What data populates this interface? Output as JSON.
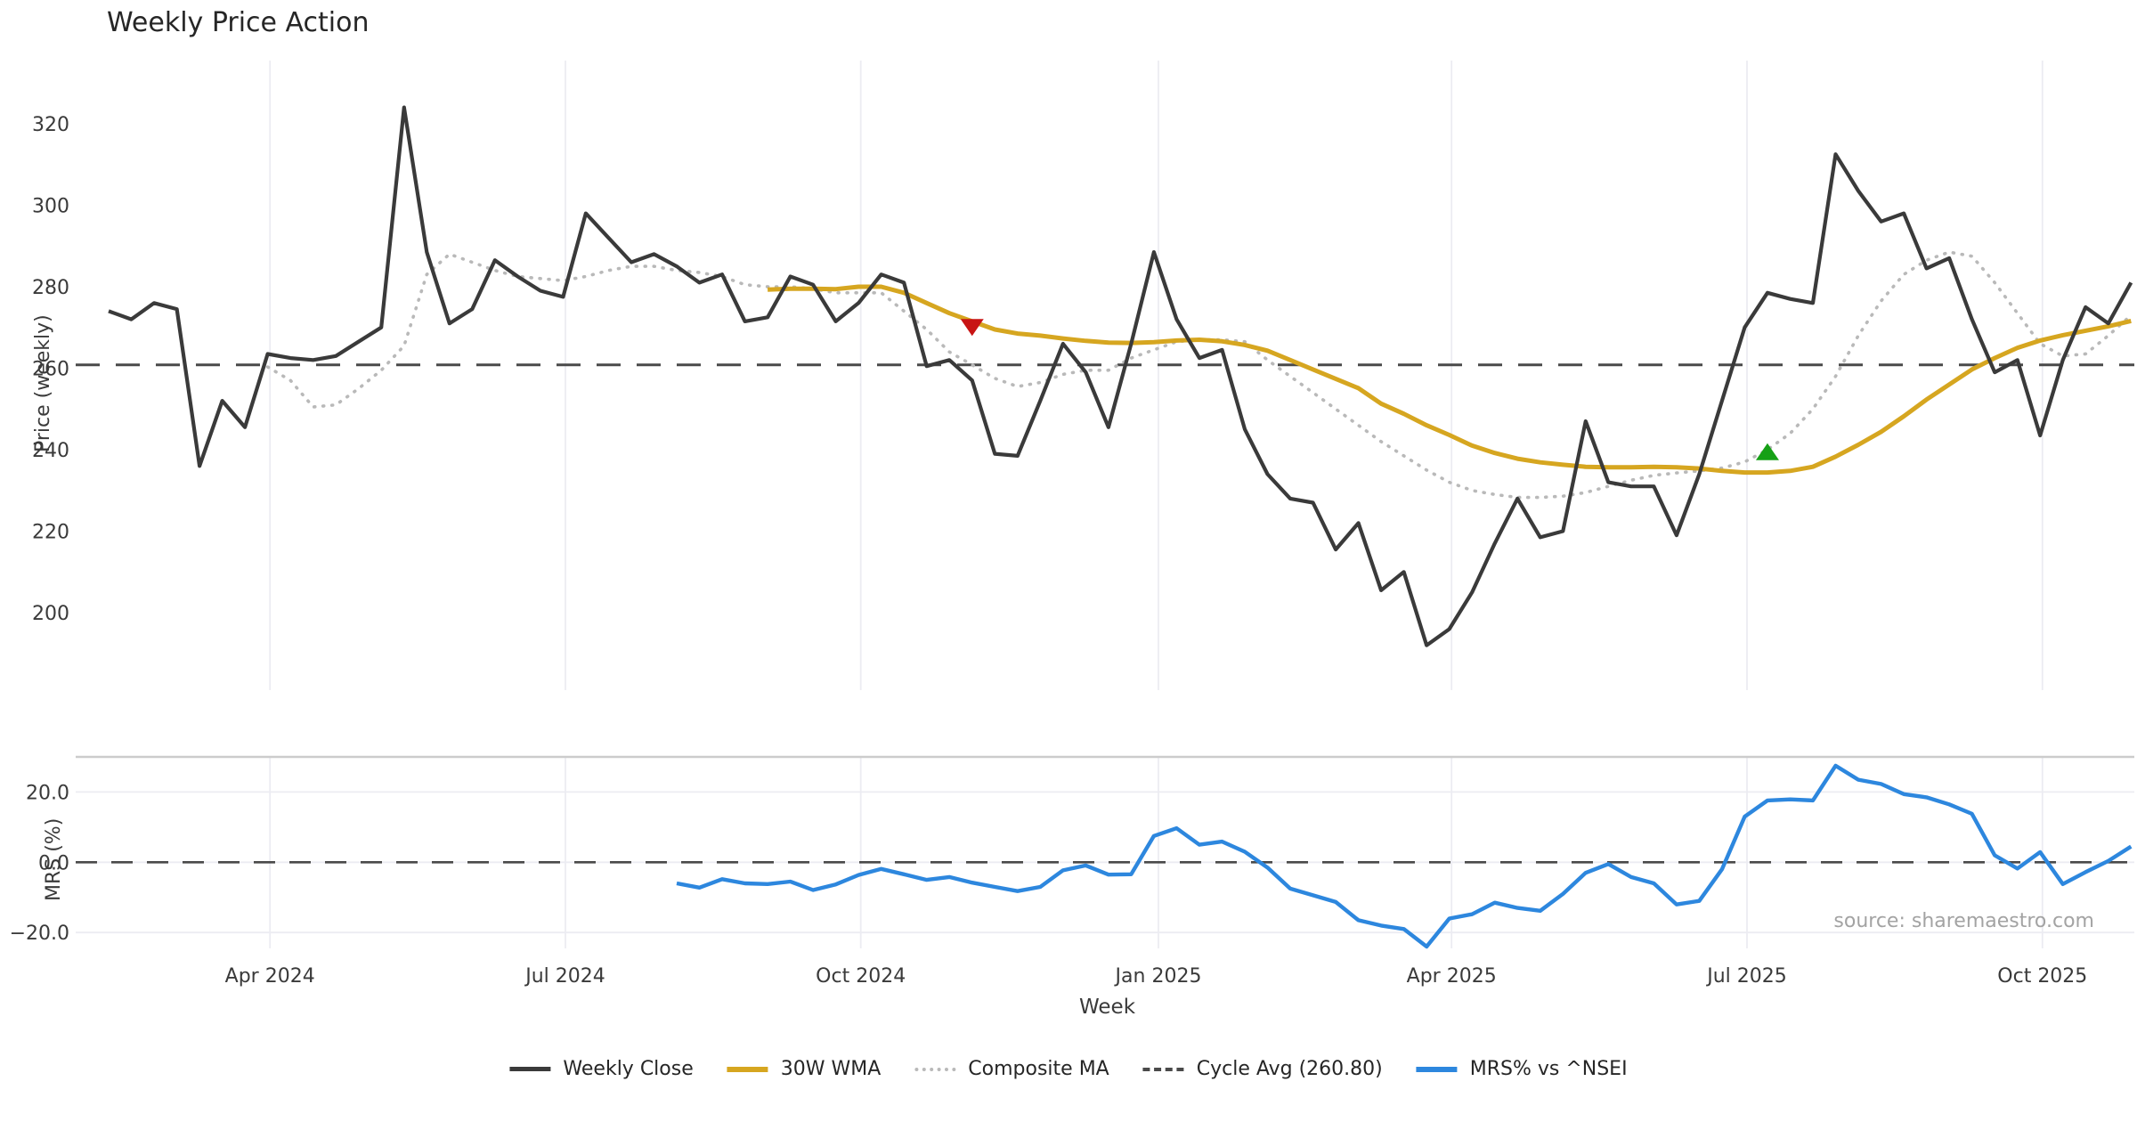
{
  "title": "Weekly Price Action",
  "source_note": "source: sharemaestro.com",
  "axes": {
    "price_axis_label": "Price (weekly)",
    "mrs_axis_label": "MRS (%)",
    "x_axis_label": "Week"
  },
  "legend": [
    {
      "label": "Weekly Close",
      "swatch": "solid-dark"
    },
    {
      "label": "30W WMA",
      "swatch": "solid-gold"
    },
    {
      "label": "Composite MA",
      "swatch": "dotted-gray"
    },
    {
      "label": "Cycle Avg (260.80)",
      "swatch": "dashed-dark"
    },
    {
      "label": "MRS% vs ^NSEI",
      "swatch": "solid-blue"
    }
  ],
  "colors": {
    "weekly_close": "#3a3a3a",
    "wma_30w": "#d6a620",
    "composite_ma": "#b9b9b9",
    "cycle_avg": "#4a4a4a",
    "mrs_line": "#2d87de",
    "sell_marker": "#c81414",
    "buy_marker": "#16a016",
    "gridline": "#ececf2",
    "panel_spine": "#cccccc",
    "tick_text": "#3a3a3a"
  },
  "chart_data": {
    "type": "line",
    "title": "Weekly Price Action",
    "x_unit": "weekly bars starting mid-Feb 2024",
    "cycle_avg_value": 260.8,
    "x_ticks": [
      {
        "label": "Apr 2024",
        "week_index": 7.1
      },
      {
        "label": "Jul 2024",
        "week_index": 20.1
      },
      {
        "label": "Oct 2024",
        "week_index": 33.1
      },
      {
        "label": "Jan 2025",
        "week_index": 46.2
      },
      {
        "label": "Apr 2025",
        "week_index": 59.1
      },
      {
        "label": "Jul 2025",
        "week_index": 72.1
      },
      {
        "label": "Oct 2025",
        "week_index": 85.1
      }
    ],
    "panels": [
      {
        "name": "price",
        "ylabel": "Price (weekly)",
        "y_ticks": [
          {
            "label": "320",
            "v": 320
          },
          {
            "label": "300",
            "v": 300
          },
          {
            "label": "280",
            "v": 280
          },
          {
            "label": "260",
            "v": 260
          },
          {
            "label": "240",
            "v": 240
          },
          {
            "label": "220",
            "v": 220
          },
          {
            "label": "200",
            "v": 200
          }
        ],
        "ylim": [
          181,
          335.5
        ],
        "grid": "vertical-only",
        "reference_line": {
          "name": "Cycle Avg",
          "value": 260.8,
          "style": "dashed"
        }
      },
      {
        "name": "mrs",
        "ylabel": "MRS (%)",
        "y_ticks": [
          {
            "label": "20.0",
            "v": 20
          },
          {
            "label": "0.0",
            "v": 0
          },
          {
            "label": "−20.0",
            "v": -20
          }
        ],
        "ylim": [
          -24.5,
          30
        ],
        "grid": "horizontal-and-vertical",
        "reference_line": {
          "name": "zero",
          "value": 0,
          "style": "dashed"
        }
      }
    ],
    "series": [
      {
        "name": "Weekly Close",
        "panel": "price",
        "start_index": 0,
        "values": [
          274,
          272,
          276,
          274.5,
          236,
          252,
          245.5,
          263.5,
          262.5,
          262,
          263,
          266.5,
          270,
          324,
          288.5,
          271,
          274.5,
          286.5,
          282.5,
          279,
          277.5,
          298,
          292,
          286,
          288,
          285,
          281,
          283,
          271.5,
          272.5,
          282.5,
          280.5,
          271.5,
          276,
          283,
          281,
          260.5,
          262,
          257,
          239,
          238.5,
          252,
          266,
          259,
          245.5,
          266,
          288.5,
          272,
          262.5,
          264.5,
          245,
          234,
          228,
          227,
          215.5,
          222,
          205.5,
          210,
          192,
          196,
          205,
          217,
          228,
          218.5,
          220,
          247,
          232,
          231,
          231,
          219,
          234,
          252,
          270,
          278.5,
          277,
          276,
          312.5,
          303.5,
          296,
          298,
          284.5,
          287,
          272,
          259,
          262,
          243.5,
          262,
          275,
          271,
          281
        ]
      },
      {
        "name": "30W WMA",
        "panel": "price",
        "start_index": 29,
        "values": [
          279.3,
          279.5,
          279.5,
          279.4,
          280,
          280,
          278.5,
          276,
          273.5,
          271.5,
          269.5,
          268.5,
          268,
          267.3,
          266.7,
          266.3,
          266.2,
          266.4,
          266.8,
          267,
          266.6,
          265.7,
          264.3,
          262,
          259.7,
          257.4,
          255.1,
          251.3,
          248.8,
          246,
          243.6,
          241,
          239.2,
          237.8,
          236.9,
          236.3,
          235.8,
          235.7,
          235.7,
          235.8,
          235.7,
          235.4,
          234.8,
          234.4,
          234.4,
          234.8,
          235.8,
          238.3,
          241.2,
          244.4,
          248.2,
          252.3,
          256,
          259.7,
          262.5,
          265,
          266.8,
          268.1,
          269.2,
          270.3,
          271.6
        ]
      },
      {
        "name": "Composite MA",
        "panel": "price",
        "start_index": 7,
        "values": [
          260.3,
          257,
          250.5,
          251,
          255,
          259.5,
          265.5,
          283,
          288,
          286,
          284,
          282.5,
          282,
          281.5,
          282.5,
          284,
          285,
          285,
          284,
          283.5,
          282.5,
          280.5,
          280,
          280,
          279.5,
          278.5,
          278.5,
          278.5,
          274,
          269.5,
          264,
          260.8,
          257.5,
          255.5,
          256.5,
          258.5,
          259.5,
          259.5,
          262.5,
          264.5,
          266.5,
          267,
          267,
          266.5,
          262,
          258,
          254,
          250,
          246,
          242,
          238.5,
          235,
          232,
          230,
          229,
          228.3,
          228.3,
          228.6,
          229.5,
          231,
          232.5,
          233.7,
          234.3,
          234.8,
          235.5,
          237,
          240,
          244,
          250,
          258,
          268,
          276.5,
          283,
          286.5,
          288.5,
          287.5,
          281,
          273.5,
          266,
          263,
          263.5,
          268,
          273
        ]
      },
      {
        "name": "MRS% vs ^NSEI",
        "panel": "mrs",
        "start_index": 25,
        "values": [
          -6,
          -7.2,
          -4.8,
          -6,
          -6.2,
          -5.5,
          -7.9,
          -6.3,
          -3.6,
          -1.9,
          -3.4,
          -5,
          -4.2,
          -5.8,
          -7,
          -8.2,
          -7,
          -2.3,
          -0.9,
          -3.5,
          -3.4,
          7.5,
          9.7,
          5,
          5.9,
          3,
          -1.5,
          -7.5,
          -9.4,
          -11.3,
          -16.5,
          -18,
          -19,
          -24,
          -16,
          -14.8,
          -11.5,
          -13,
          -13.8,
          -9,
          -3,
          -0.5,
          -4.2,
          -6,
          -12,
          -11,
          -2,
          13,
          17.6,
          17.9,
          17.6,
          27.5,
          23.5,
          22.3,
          19.4,
          18.5,
          16.5,
          13.8,
          2,
          -1.8,
          2.9,
          -6.2,
          -2.8,
          0.4,
          4.5
        ]
      }
    ],
    "markers": [
      {
        "name": "sell-signal",
        "shape": "triangle-down",
        "panel": "price",
        "week_index": 38,
        "value": 270
      },
      {
        "name": "buy-signal",
        "shape": "triangle-up",
        "panel": "price",
        "week_index": 73,
        "value": 239.5
      }
    ]
  }
}
